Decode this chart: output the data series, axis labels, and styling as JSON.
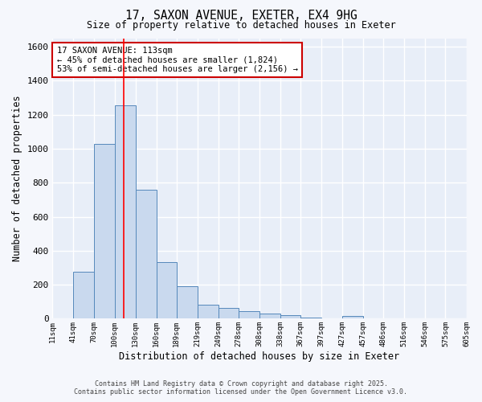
{
  "title_line1": "17, SAXON AVENUE, EXETER, EX4 9HG",
  "title_line2": "Size of property relative to detached houses in Exeter",
  "xlabel": "Distribution of detached houses by size in Exeter",
  "ylabel": "Number of detached properties",
  "bar_color": "#c9d9ee",
  "bar_edge_color": "#5588bb",
  "background_color": "#e8eef8",
  "grid_color": "#ffffff",
  "red_line_x": 113,
  "annotation_text": "17 SAXON AVENUE: 113sqm\n← 45% of detached houses are smaller (1,824)\n53% of semi-detached houses are larger (2,156) →",
  "bins": [
    11,
    41,
    70,
    100,
    130,
    160,
    189,
    219,
    249,
    278,
    308,
    338,
    367,
    397,
    427,
    457,
    486,
    516,
    546,
    575,
    605
  ],
  "counts": [
    0,
    275,
    1030,
    1255,
    760,
    335,
    190,
    80,
    65,
    45,
    30,
    20,
    5,
    0,
    15,
    0,
    0,
    0,
    0,
    0,
    10
  ],
  "ylim": [
    0,
    1650
  ],
  "yticks": [
    0,
    200,
    400,
    600,
    800,
    1000,
    1200,
    1400,
    1600
  ],
  "footer_line1": "Contains HM Land Registry data © Crown copyright and database right 2025.",
  "footer_line2": "Contains public sector information licensed under the Open Government Licence v3.0."
}
